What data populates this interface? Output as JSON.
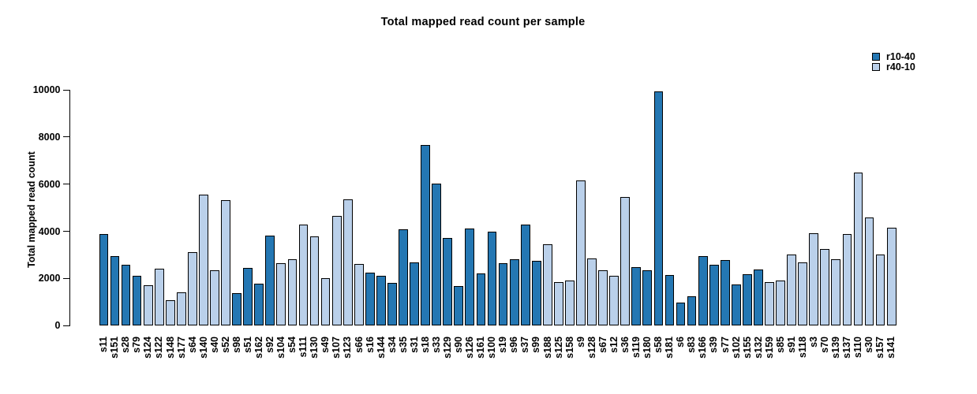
{
  "chart_data": {
    "type": "bar",
    "title": "Total mapped read count per sample",
    "xlabel": "",
    "ylabel": "Total mapped read count",
    "ylim": [
      0,
      10000
    ],
    "yticks": [
      0,
      2000,
      4000,
      6000,
      8000,
      10000
    ],
    "grid": false,
    "legend_position": "top-right",
    "bar_outline_color": "#000000",
    "legend": [
      {
        "name": "r10-40",
        "color": "#2477b3"
      },
      {
        "name": "r40-10",
        "color": "#bad0ea"
      }
    ],
    "bars": [
      {
        "label": "s11",
        "value": 3900,
        "group": "r10-40"
      },
      {
        "label": "s151",
        "value": 2960,
        "group": "r10-40"
      },
      {
        "label": "s28",
        "value": 2580,
        "group": "r10-40"
      },
      {
        "label": "s79",
        "value": 2130,
        "group": "r10-40"
      },
      {
        "label": "s124",
        "value": 1710,
        "group": "r40-10"
      },
      {
        "label": "s122",
        "value": 2410,
        "group": "r40-10"
      },
      {
        "label": "s148",
        "value": 1090,
        "group": "r40-10"
      },
      {
        "label": "s177",
        "value": 1420,
        "group": "r40-10"
      },
      {
        "label": "s64",
        "value": 3130,
        "group": "r40-10"
      },
      {
        "label": "s140",
        "value": 5560,
        "group": "r40-10"
      },
      {
        "label": "s40",
        "value": 2340,
        "group": "r40-10"
      },
      {
        "label": "s52",
        "value": 5310,
        "group": "r40-10"
      },
      {
        "label": "s98",
        "value": 1370,
        "group": "r10-40"
      },
      {
        "label": "s51",
        "value": 2440,
        "group": "r10-40"
      },
      {
        "label": "s162",
        "value": 1790,
        "group": "r10-40"
      },
      {
        "label": "s92",
        "value": 3820,
        "group": "r10-40"
      },
      {
        "label": "s104",
        "value": 2650,
        "group": "r40-10"
      },
      {
        "label": "s54",
        "value": 2800,
        "group": "r40-10"
      },
      {
        "label": "s111",
        "value": 4290,
        "group": "r40-10"
      },
      {
        "label": "s130",
        "value": 3790,
        "group": "r40-10"
      },
      {
        "label": "s49",
        "value": 2000,
        "group": "r40-10"
      },
      {
        "label": "s107",
        "value": 4640,
        "group": "r40-10"
      },
      {
        "label": "s123",
        "value": 5360,
        "group": "r40-10"
      },
      {
        "label": "s66",
        "value": 2630,
        "group": "r40-10"
      },
      {
        "label": "s16",
        "value": 2260,
        "group": "r10-40"
      },
      {
        "label": "s144",
        "value": 2100,
        "group": "r10-40"
      },
      {
        "label": "s34",
        "value": 1820,
        "group": "r10-40"
      },
      {
        "label": "s35",
        "value": 4080,
        "group": "r10-40"
      },
      {
        "label": "s31",
        "value": 2670,
        "group": "r10-40"
      },
      {
        "label": "s18",
        "value": 7650,
        "group": "r10-40"
      },
      {
        "label": "s33",
        "value": 6010,
        "group": "r10-40"
      },
      {
        "label": "s129",
        "value": 3720,
        "group": "r10-40"
      },
      {
        "label": "s90",
        "value": 1690,
        "group": "r10-40"
      },
      {
        "label": "s126",
        "value": 4110,
        "group": "r10-40"
      },
      {
        "label": "s161",
        "value": 2230,
        "group": "r10-40"
      },
      {
        "label": "s100",
        "value": 4000,
        "group": "r10-40"
      },
      {
        "label": "s19",
        "value": 2640,
        "group": "r10-40"
      },
      {
        "label": "s96",
        "value": 2830,
        "group": "r10-40"
      },
      {
        "label": "s37",
        "value": 4280,
        "group": "r10-40"
      },
      {
        "label": "s99",
        "value": 2760,
        "group": "r10-40"
      },
      {
        "label": "s188",
        "value": 3450,
        "group": "r40-10"
      },
      {
        "label": "s125",
        "value": 1840,
        "group": "r40-10"
      },
      {
        "label": "s158",
        "value": 1910,
        "group": "r40-10"
      },
      {
        "label": "s9",
        "value": 6150,
        "group": "r40-10"
      },
      {
        "label": "s128",
        "value": 2840,
        "group": "r40-10"
      },
      {
        "label": "s67",
        "value": 2360,
        "group": "r40-10"
      },
      {
        "label": "s12",
        "value": 2110,
        "group": "r40-10"
      },
      {
        "label": "s36",
        "value": 5470,
        "group": "r40-10"
      },
      {
        "label": "s119",
        "value": 2480,
        "group": "r10-40"
      },
      {
        "label": "s180",
        "value": 2340,
        "group": "r10-40"
      },
      {
        "label": "s58",
        "value": 9930,
        "group": "r10-40"
      },
      {
        "label": "s181",
        "value": 2140,
        "group": "r10-40"
      },
      {
        "label": "s6",
        "value": 980,
        "group": "r10-40"
      },
      {
        "label": "s83",
        "value": 1260,
        "group": "r10-40"
      },
      {
        "label": "s166",
        "value": 2950,
        "group": "r10-40"
      },
      {
        "label": "s39",
        "value": 2590,
        "group": "r10-40"
      },
      {
        "label": "s77",
        "value": 2780,
        "group": "r10-40"
      },
      {
        "label": "s102",
        "value": 1760,
        "group": "r10-40"
      },
      {
        "label": "s155",
        "value": 2170,
        "group": "r10-40"
      },
      {
        "label": "s132",
        "value": 2390,
        "group": "r10-40"
      },
      {
        "label": "s159",
        "value": 1840,
        "group": "r40-10"
      },
      {
        "label": "s85",
        "value": 1920,
        "group": "r40-10"
      },
      {
        "label": "s91",
        "value": 3030,
        "group": "r40-10"
      },
      {
        "label": "s118",
        "value": 2690,
        "group": "r40-10"
      },
      {
        "label": "s3",
        "value": 3930,
        "group": "r40-10"
      },
      {
        "label": "s70",
        "value": 3240,
        "group": "r40-10"
      },
      {
        "label": "s139",
        "value": 2820,
        "group": "r40-10"
      },
      {
        "label": "s137",
        "value": 3890,
        "group": "r40-10"
      },
      {
        "label": "s110",
        "value": 6480,
        "group": "r40-10"
      },
      {
        "label": "s30",
        "value": 4580,
        "group": "r40-10"
      },
      {
        "label": "s157",
        "value": 3030,
        "group": "r40-10"
      },
      {
        "label": "s141",
        "value": 4150,
        "group": "r40-10"
      }
    ]
  }
}
